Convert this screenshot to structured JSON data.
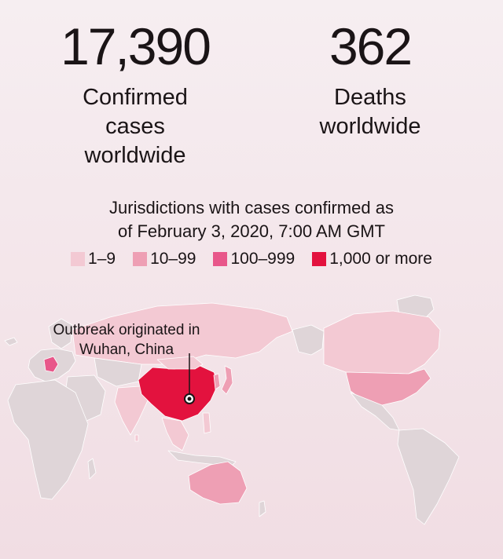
{
  "stats": {
    "confirmed": {
      "value": "17,390",
      "label": "Confirmed\ncases\nworldwide"
    },
    "deaths": {
      "value": "362",
      "label": "Deaths\nworldwide"
    }
  },
  "map": {
    "title": "Jurisdictions with cases confirmed as\nof February 3, 2020, 7:00 AM GMT",
    "legend": [
      {
        "label": "1–9",
        "color": "#f3c9d3"
      },
      {
        "label": "10–99",
        "color": "#ee9fb4"
      },
      {
        "label": "100–999",
        "color": "#e8578a"
      },
      {
        "label": "1,000 or more",
        "color": "#e3123e"
      }
    ],
    "annotation": "Outbreak originated in\nWuhan, China",
    "base_land_color": "#dfd5d8",
    "country_fill_levels": {
      "china": "1,000 or more",
      "united_states": "10–99",
      "canada": "1–9",
      "australia": "10–99",
      "russia": "1–9",
      "germany": "100–999",
      "india": "1–9",
      "southeast_asia": "1–9",
      "japan": "10–99"
    }
  }
}
